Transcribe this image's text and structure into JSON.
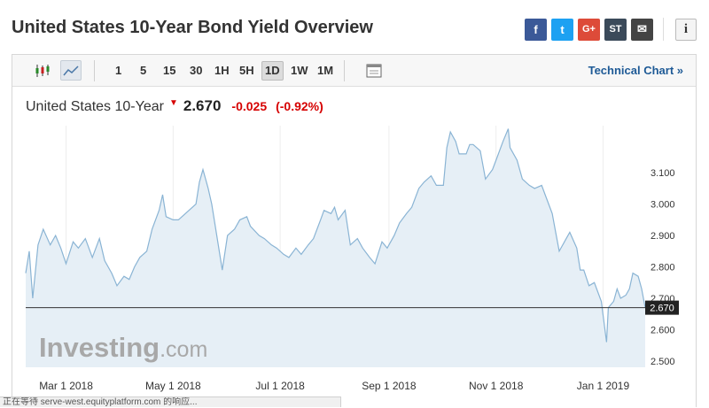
{
  "page_title": "United States 10-Year Bond Yield Overview",
  "share": [
    {
      "name": "facebook-icon",
      "glyph": "f",
      "color": "#3b5998"
    },
    {
      "name": "twitter-icon",
      "glyph": "t",
      "color": "#1da1f2"
    },
    {
      "name": "google-plus-icon",
      "glyph": "G+",
      "color": "#dd4b39"
    },
    {
      "name": "stocktwits-icon",
      "glyph": "ST",
      "color": "#3b4a5a"
    },
    {
      "name": "email-icon",
      "glyph": "✉",
      "color": "#444444"
    }
  ],
  "info_glyph": "i",
  "toolbar": {
    "timeframes": [
      "1",
      "5",
      "15",
      "30",
      "1H",
      "5H",
      "1D",
      "1W",
      "1M"
    ],
    "active_timeframe": "1D",
    "tech_link": "Technical Chart »"
  },
  "quote": {
    "name": "United States 10-Year",
    "last": "2.670",
    "change": "-0.025",
    "change_pct": "(-0.92%)",
    "down_color": "#d60000"
  },
  "watermark": {
    "brand": "Investing",
    "suffix": ".com"
  },
  "status_text": "正在等待 serve-west.equityplatform.com 的响应...",
  "chart_data": {
    "type": "area",
    "title": "",
    "xlabel": "",
    "ylabel": "",
    "x_ticks": [
      "Mar 1 2018",
      "May 1 2018",
      "Jul 1 2018",
      "Sep 1 2018",
      "Nov 1 2018",
      "Jan 1 2019"
    ],
    "y_ticks": [
      "2.500",
      "2.600",
      "2.700",
      "2.800",
      "2.900",
      "3.000",
      "3.100"
    ],
    "ylim": [
      2.48,
      3.25
    ],
    "x_range": [
      "2018-02-06",
      "2019-01-25"
    ],
    "grid": "vertical",
    "current_value": 2.67,
    "current_label": "2.670",
    "line_color": "#8ab4d4",
    "fill_color": "#e6eff6",
    "series": [
      {
        "values": [
          [
            "2018-02-06",
            2.78
          ],
          [
            "2018-02-08",
            2.85
          ],
          [
            "2018-02-10",
            2.7
          ],
          [
            "2018-02-13",
            2.87
          ],
          [
            "2018-02-16",
            2.92
          ],
          [
            "2018-02-20",
            2.87
          ],
          [
            "2018-02-23",
            2.9
          ],
          [
            "2018-02-26",
            2.86
          ],
          [
            "2018-03-01",
            2.81
          ],
          [
            "2018-03-05",
            2.88
          ],
          [
            "2018-03-08",
            2.86
          ],
          [
            "2018-03-12",
            2.89
          ],
          [
            "2018-03-16",
            2.83
          ],
          [
            "2018-03-20",
            2.89
          ],
          [
            "2018-03-23",
            2.82
          ],
          [
            "2018-03-27",
            2.78
          ],
          [
            "2018-03-30",
            2.74
          ],
          [
            "2018-04-03",
            2.77
          ],
          [
            "2018-04-06",
            2.76
          ],
          [
            "2018-04-09",
            2.8
          ],
          [
            "2018-04-12",
            2.83
          ],
          [
            "2018-04-16",
            2.85
          ],
          [
            "2018-04-19",
            2.92
          ],
          [
            "2018-04-23",
            2.98
          ],
          [
            "2018-04-25",
            3.03
          ],
          [
            "2018-04-27",
            2.96
          ],
          [
            "2018-05-01",
            2.95
          ],
          [
            "2018-05-04",
            2.95
          ],
          [
            "2018-05-08",
            2.97
          ],
          [
            "2018-05-10",
            2.98
          ],
          [
            "2018-05-14",
            3.0
          ],
          [
            "2018-05-16",
            3.07
          ],
          [
            "2018-05-18",
            3.11
          ],
          [
            "2018-05-21",
            3.05
          ],
          [
            "2018-05-23",
            3.0
          ],
          [
            "2018-05-25",
            2.93
          ],
          [
            "2018-05-29",
            2.79
          ],
          [
            "2018-06-01",
            2.9
          ],
          [
            "2018-06-05",
            2.92
          ],
          [
            "2018-06-08",
            2.95
          ],
          [
            "2018-06-12",
            2.96
          ],
          [
            "2018-06-14",
            2.93
          ],
          [
            "2018-06-19",
            2.9
          ],
          [
            "2018-06-22",
            2.89
          ],
          [
            "2018-06-26",
            2.87
          ],
          [
            "2018-06-29",
            2.86
          ],
          [
            "2018-07-03",
            2.84
          ],
          [
            "2018-07-06",
            2.83
          ],
          [
            "2018-07-10",
            2.86
          ],
          [
            "2018-07-13",
            2.84
          ],
          [
            "2018-07-17",
            2.87
          ],
          [
            "2018-07-20",
            2.89
          ],
          [
            "2018-07-24",
            2.95
          ],
          [
            "2018-07-26",
            2.98
          ],
          [
            "2018-07-30",
            2.97
          ],
          [
            "2018-08-01",
            2.99
          ],
          [
            "2018-08-03",
            2.95
          ],
          [
            "2018-08-07",
            2.98
          ],
          [
            "2018-08-10",
            2.87
          ],
          [
            "2018-08-14",
            2.89
          ],
          [
            "2018-08-17",
            2.86
          ],
          [
            "2018-08-21",
            2.83
          ],
          [
            "2018-08-24",
            2.81
          ],
          [
            "2018-08-28",
            2.88
          ],
          [
            "2018-08-31",
            2.86
          ],
          [
            "2018-09-04",
            2.9
          ],
          [
            "2018-09-07",
            2.94
          ],
          [
            "2018-09-11",
            2.97
          ],
          [
            "2018-09-14",
            2.99
          ],
          [
            "2018-09-18",
            3.05
          ],
          [
            "2018-09-21",
            3.07
          ],
          [
            "2018-09-25",
            3.09
          ],
          [
            "2018-09-28",
            3.06
          ],
          [
            "2018-10-02",
            3.06
          ],
          [
            "2018-10-04",
            3.18
          ],
          [
            "2018-10-06",
            3.23
          ],
          [
            "2018-10-09",
            3.2
          ],
          [
            "2018-10-11",
            3.16
          ],
          [
            "2018-10-15",
            3.16
          ],
          [
            "2018-10-17",
            3.19
          ],
          [
            "2018-10-19",
            3.19
          ],
          [
            "2018-10-23",
            3.17
          ],
          [
            "2018-10-26",
            3.08
          ],
          [
            "2018-10-30",
            3.11
          ],
          [
            "2018-11-01",
            3.14
          ],
          [
            "2018-11-05",
            3.2
          ],
          [
            "2018-11-08",
            3.24
          ],
          [
            "2018-11-09",
            3.18
          ],
          [
            "2018-11-13",
            3.14
          ],
          [
            "2018-11-16",
            3.08
          ],
          [
            "2018-11-20",
            3.06
          ],
          [
            "2018-11-23",
            3.05
          ],
          [
            "2018-11-27",
            3.06
          ],
          [
            "2018-11-29",
            3.03
          ],
          [
            "2018-12-03",
            2.97
          ],
          [
            "2018-12-05",
            2.91
          ],
          [
            "2018-12-07",
            2.85
          ],
          [
            "2018-12-11",
            2.89
          ],
          [
            "2018-12-13",
            2.91
          ],
          [
            "2018-12-17",
            2.86
          ],
          [
            "2018-12-19",
            2.79
          ],
          [
            "2018-12-21",
            2.79
          ],
          [
            "2018-12-24",
            2.74
          ],
          [
            "2018-12-27",
            2.75
          ],
          [
            "2018-12-31",
            2.69
          ],
          [
            "2019-01-03",
            2.56
          ],
          [
            "2019-01-04",
            2.67
          ],
          [
            "2019-01-07",
            2.69
          ],
          [
            "2019-01-09",
            2.73
          ],
          [
            "2019-01-11",
            2.7
          ],
          [
            "2019-01-14",
            2.71
          ],
          [
            "2019-01-16",
            2.73
          ],
          [
            "2019-01-18",
            2.78
          ],
          [
            "2019-01-21",
            2.77
          ],
          [
            "2019-01-23",
            2.73
          ],
          [
            "2019-01-25",
            2.67
          ]
        ]
      }
    ]
  }
}
